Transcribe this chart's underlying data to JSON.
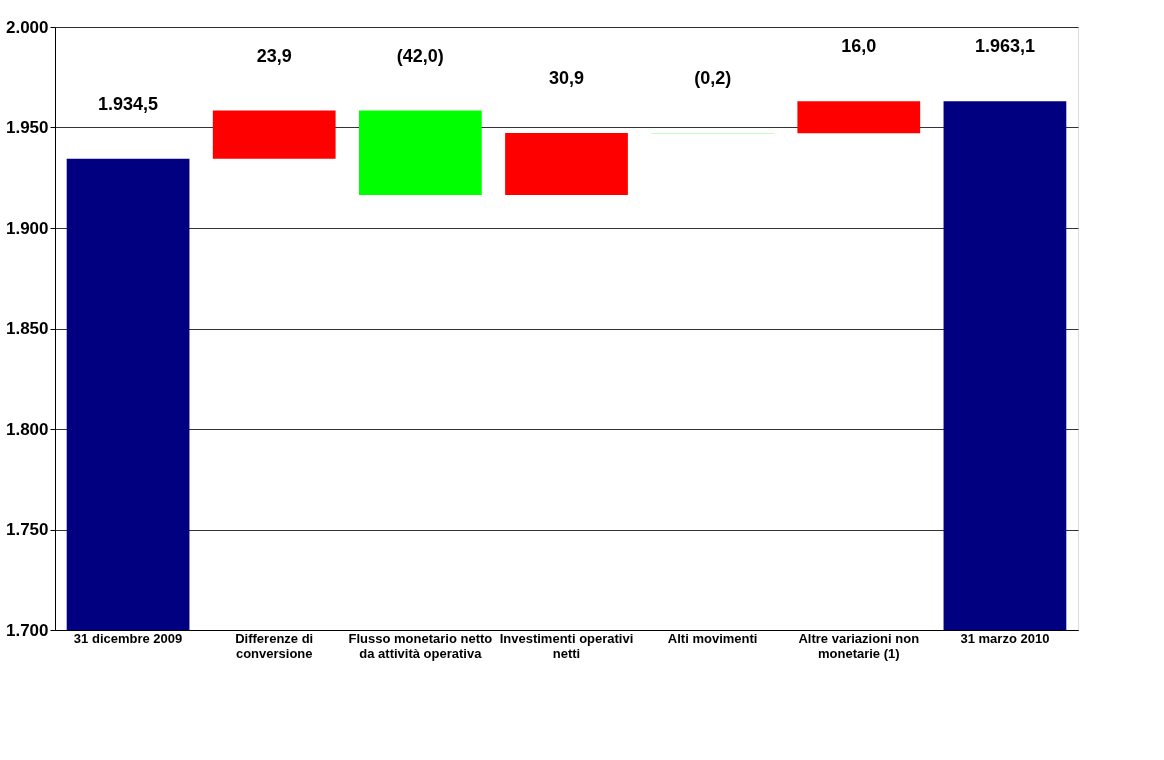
{
  "chart_data": {
    "type": "bar",
    "categories": [
      "31 dicembre 2009",
      "Differenze di conversione",
      "Flusso monetario netto da attività operativa",
      "Investimenti operativi netti",
      "Alti movimenti",
      "Altre variazioni non monetarie (1)",
      "31 marzo 2010"
    ],
    "values": [
      1934.5,
      23.9,
      -42.0,
      30.9,
      -0.2,
      16.0,
      1963.1
    ],
    "base": [
      0,
      1934.5,
      1958.4,
      1916.4,
      1947.3,
      1947.1,
      0
    ],
    "colors": [
      "#000080",
      "#ff0000",
      "#00ff00",
      "#ff0000",
      "#00ff00",
      "#ff0000",
      "#000080"
    ],
    "value_labels": [
      "1.934,5",
      "23,9",
      "(42,0)",
      "30,9",
      "(0,2)",
      "16,0",
      "1.963,1"
    ],
    "ylim": [
      1700,
      2000
    ],
    "yticks": [
      {
        "value": 1700,
        "label": "1.700"
      },
      {
        "value": 1750,
        "label": "1.750"
      },
      {
        "value": 1800,
        "label": "1.800"
      },
      {
        "value": 1850,
        "label": "1.850"
      },
      {
        "value": 1900,
        "label": "1.900"
      },
      {
        "value": 1950,
        "label": "1.950"
      },
      {
        "value": 2000,
        "label": "2.000"
      }
    ],
    "grid": "y"
  }
}
